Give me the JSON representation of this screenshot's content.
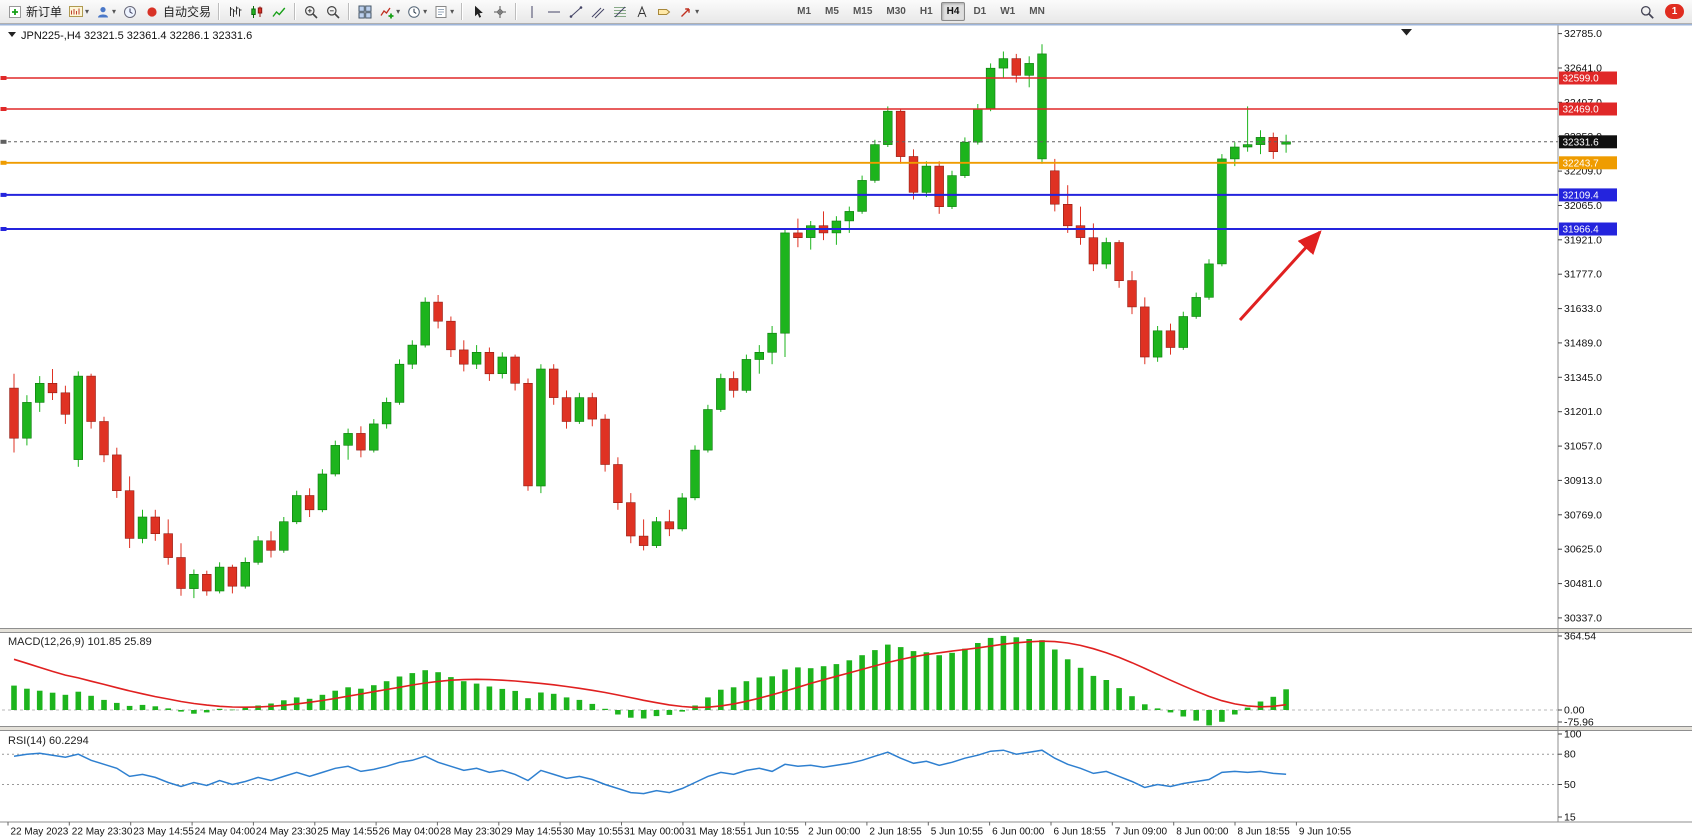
{
  "chart_header": {
    "symbol": "JPN225-,H4",
    "ohlc": "32321.5 32361.4 32286.1 32331.6"
  },
  "toolbar": {
    "items": [
      {
        "name": "new-order-button",
        "icon": "new-order-icon",
        "label": "新订单"
      },
      {
        "name": "new-chart-button",
        "icon": "new-chart-icon",
        "dropdown": true
      },
      {
        "name": "profiles-button",
        "icon": "profiles-icon",
        "dropdown": true
      },
      {
        "name": "market-watch-button",
        "icon": "market-watch-icon"
      },
      {
        "name": "autotrade-button",
        "icon": "autotrade-icon",
        "label": "自动交易"
      },
      {
        "sep": true
      },
      {
        "name": "bar-chart-button",
        "icon": "bar-chart-icon"
      },
      {
        "name": "candle-chart-button",
        "icon": "candle-chart-icon"
      },
      {
        "name": "line-chart-button",
        "icon": "line-chart-icon"
      },
      {
        "sep": true
      },
      {
        "name": "zoom-in-button",
        "icon": "zoom-in-icon"
      },
      {
        "name": "zoom-out-button",
        "icon": "zoom-out-icon"
      },
      {
        "sep": true
      },
      {
        "name": "tile-windows-button",
        "icon": "tile-windows-icon"
      },
      {
        "name": "indicators-button",
        "icon": "indicators-icon",
        "dropdown": true
      },
      {
        "name": "periods-button",
        "icon": "periods-icon",
        "dropdown": true
      },
      {
        "name": "templates-button",
        "icon": "templates-icon",
        "dropdown": true
      },
      {
        "sep": true
      },
      {
        "name": "cursor-button",
        "icon": "cursor-icon"
      },
      {
        "name": "crosshair-button",
        "icon": "crosshair-icon"
      },
      {
        "sep": true
      },
      {
        "name": "vline-button",
        "icon": "vline-icon"
      },
      {
        "name": "hline-button",
        "icon": "hline-icon"
      },
      {
        "name": "trendline-button",
        "icon": "trendline-icon"
      },
      {
        "name": "channel-button",
        "icon": "channel-icon"
      },
      {
        "name": "fibo-button",
        "icon": "fibo-icon"
      },
      {
        "name": "text-button",
        "icon": "text-icon"
      },
      {
        "name": "label-button",
        "icon": "label-icon"
      },
      {
        "name": "arrows-button",
        "icon": "arrows-icon",
        "dropdown": true
      }
    ],
    "timeframes": [
      "M1",
      "M5",
      "M15",
      "M30",
      "H1",
      "H4",
      "D1",
      "W1",
      "MN"
    ],
    "active_timeframe": "H4",
    "notification_count": "1"
  },
  "colors": {
    "up": "#1db41d",
    "down": "#df3223",
    "up_border": "#0c7a0c",
    "down_border": "#8f1d14",
    "macd_bar": "#1db41d",
    "macd_signal": "#e02020",
    "rsi_line": "#2f80d0",
    "arrow": "#e02020"
  },
  "hlines": [
    {
      "price": 32599.0,
      "label": "32599.0",
      "color": "#e02828",
      "width": 1.4
    },
    {
      "price": 32469.0,
      "label": "32469.0",
      "color": "#e02828",
      "width": 1.4
    },
    {
      "price": 32331.6,
      "label": "32331.6",
      "color": "#606060",
      "tag": "#101010",
      "width": 1,
      "dash": "3,3"
    },
    {
      "price": 32243.7,
      "label": "32243.7",
      "color": "#ef9c00",
      "width": 1.8
    },
    {
      "price": 32109.4,
      "label": "32109.4",
      "color": "#2424dd",
      "width": 2
    },
    {
      "price": 31966.4,
      "label": "31966.4",
      "color": "#2424dd",
      "width": 2
    }
  ],
  "price_axis_labels": [
    "32785.0",
    "32641.0",
    "32497.0",
    "32353.0",
    "32209.0",
    "32065.0",
    "31921.0",
    "31777.0",
    "31633.0",
    "31489.0",
    "31345.0",
    "31201.0",
    "31057.0",
    "30913.0",
    "30769.0",
    "30625.0",
    "30481.0",
    "30337.0"
  ],
  "time_axis": [
    "22 May 2023",
    "22 May 23:30",
    "23 May 14:55",
    "24 May 04:00",
    "24 May 23:30",
    "25 May 14:55",
    "26 May 04:00",
    "28 May 23:30",
    "29 May 14:55",
    "30 May 10:55",
    "31 May 00:00",
    "31 May 18:55",
    "1 Jun 10:55",
    "2 Jun 00:00",
    "2 Jun 18:55",
    "5 Jun 10:55",
    "6 Jun 00:00",
    "6 Jun 18:55",
    "7 Jun 09:00",
    "8 Jun 00:00",
    "8 Jun 18:55",
    "9 Jun 10:55"
  ],
  "indicator_labels": {
    "macd": "MACD(12,26,9) 101.85 25.89",
    "rsi": "RSI(14) 60.2294"
  },
  "macd_scale": [
    "364.54",
    "0.00",
    "-75.96"
  ],
  "rsi_scale": [
    "100",
    "80",
    "50",
    "15"
  ],
  "annotation": {
    "type": "arrow",
    "color": "#e02020",
    "from": [
      1240,
      320
    ],
    "to": [
      1320,
      232
    ]
  },
  "chart_data": [
    {
      "type": "candlestick",
      "symbol": "JPN225-",
      "timeframe": "H4",
      "current_ohlc": [
        32321.5,
        32361.4,
        32286.1,
        32331.6
      ],
      "ylim": [
        30320,
        32800
      ],
      "ohlc": [
        [
          31300,
          31360,
          31030,
          31090
        ],
        [
          31090,
          31270,
          31060,
          31240
        ],
        [
          31240,
          31350,
          31200,
          31320
        ],
        [
          31320,
          31380,
          31250,
          31280
        ],
        [
          31280,
          31310,
          31150,
          31190
        ],
        [
          31000,
          31370,
          30970,
          31350
        ],
        [
          31350,
          31360,
          31130,
          31160
        ],
        [
          31160,
          31180,
          30990,
          31020
        ],
        [
          31020,
          31050,
          30840,
          30870
        ],
        [
          30870,
          30930,
          30630,
          30670
        ],
        [
          30670,
          30790,
          30650,
          30760
        ],
        [
          30760,
          30790,
          30660,
          30690
        ],
        [
          30690,
          30750,
          30560,
          30590
        ],
        [
          30590,
          30650,
          30430,
          30460
        ],
        [
          30460,
          30540,
          30420,
          30520
        ],
        [
          30520,
          30535,
          30430,
          30450
        ],
        [
          30450,
          30570,
          30440,
          30550
        ],
        [
          30550,
          30560,
          30440,
          30470
        ],
        [
          30470,
          30590,
          30460,
          30570
        ],
        [
          30570,
          30680,
          30560,
          30660
        ],
        [
          30660,
          30700,
          30590,
          30620
        ],
        [
          30620,
          30760,
          30610,
          30740
        ],
        [
          30740,
          30870,
          30730,
          30850
        ],
        [
          30850,
          30880,
          30760,
          30790
        ],
        [
          30790,
          30960,
          30780,
          30940
        ],
        [
          30940,
          31080,
          30930,
          31060
        ],
        [
          31060,
          31130,
          31000,
          31110
        ],
        [
          31110,
          31140,
          31010,
          31040
        ],
        [
          31040,
          31170,
          31030,
          31150
        ],
        [
          31150,
          31260,
          31130,
          31240
        ],
        [
          31240,
          31420,
          31230,
          31400
        ],
        [
          31400,
          31500,
          31380,
          31480
        ],
        [
          31480,
          31680,
          31470,
          31660
        ],
        [
          31660,
          31690,
          31550,
          31580
        ],
        [
          31580,
          31600,
          31430,
          31460
        ],
        [
          31460,
          31500,
          31370,
          31400
        ],
        [
          31400,
          31480,
          31380,
          31450
        ],
        [
          31450,
          31470,
          31330,
          31360
        ],
        [
          31360,
          31450,
          31340,
          31430
        ],
        [
          31430,
          31440,
          31290,
          31320
        ],
        [
          31320,
          31340,
          30870,
          30890
        ],
        [
          30890,
          31400,
          30860,
          31380
        ],
        [
          31380,
          31400,
          31230,
          31260
        ],
        [
          31260,
          31290,
          31130,
          31160
        ],
        [
          31160,
          31280,
          31150,
          31260
        ],
        [
          31260,
          31280,
          31140,
          31170
        ],
        [
          31170,
          31190,
          30950,
          30980
        ],
        [
          30980,
          31010,
          30790,
          30820
        ],
        [
          30820,
          30860,
          30650,
          30680
        ],
        [
          30680,
          30750,
          30620,
          30640
        ],
        [
          30640,
          30760,
          30630,
          30740
        ],
        [
          30740,
          30790,
          30680,
          30710
        ],
        [
          30710,
          30860,
          30700,
          30840
        ],
        [
          30840,
          31060,
          30830,
          31040
        ],
        [
          31040,
          31230,
          31030,
          31210
        ],
        [
          31210,
          31360,
          31200,
          31340
        ],
        [
          31340,
          31370,
          31260,
          31290
        ],
        [
          31290,
          31440,
          31280,
          31420
        ],
        [
          31420,
          31480,
          31360,
          31450
        ],
        [
          31450,
          31560,
          31400,
          31530
        ],
        [
          31530,
          31970,
          31430,
          31950
        ],
        [
          31950,
          32010,
          31890,
          31930
        ],
        [
          31930,
          32000,
          31880,
          31980
        ],
        [
          31980,
          32040,
          31920,
          31950
        ],
        [
          31950,
          32020,
          31900,
          32000
        ],
        [
          32000,
          32060,
          31950,
          32040
        ],
        [
          32040,
          32190,
          32030,
          32170
        ],
        [
          32170,
          32340,
          32160,
          32320
        ],
        [
          32320,
          32480,
          32310,
          32460
        ],
        [
          32460,
          32470,
          32240,
          32270
        ],
        [
          32270,
          32300,
          32090,
          32120
        ],
        [
          32120,
          32250,
          32100,
          32230
        ],
        [
          32230,
          32250,
          32030,
          32060
        ],
        [
          32060,
          32210,
          32050,
          32190
        ],
        [
          32190,
          32350,
          32180,
          32330
        ],
        [
          32330,
          32490,
          32320,
          32470
        ],
        [
          32470,
          32660,
          32460,
          32640
        ],
        [
          32640,
          32710,
          32600,
          32680
        ],
        [
          32680,
          32700,
          32580,
          32610
        ],
        [
          32610,
          32690,
          32560,
          32660
        ],
        [
          32260,
          32740,
          32240,
          32700
        ],
        [
          32210,
          32260,
          32040,
          32070
        ],
        [
          32070,
          32150,
          31950,
          31980
        ],
        [
          31980,
          32060,
          31900,
          31930
        ],
        [
          31930,
          31990,
          31790,
          31820
        ],
        [
          31820,
          31930,
          31800,
          31910
        ],
        [
          31910,
          31920,
          31720,
          31750
        ],
        [
          31750,
          31790,
          31610,
          31640
        ],
        [
          31640,
          31680,
          31400,
          31430
        ],
        [
          31430,
          31560,
          31410,
          31540
        ],
        [
          31540,
          31570,
          31440,
          31470
        ],
        [
          31470,
          31620,
          31460,
          31600
        ],
        [
          31600,
          31700,
          31590,
          31680
        ],
        [
          31680,
          31840,
          31670,
          31820
        ],
        [
          31820,
          32280,
          31810,
          32260
        ],
        [
          32260,
          32330,
          32230,
          32310
        ],
        [
          32310,
          32480,
          32290,
          32320
        ],
        [
          32320,
          32380,
          32280,
          32350
        ],
        [
          32350,
          32370,
          32260,
          32290
        ],
        [
          32321.5,
          32361.4,
          32286.1,
          32331.6
        ]
      ]
    },
    {
      "type": "bar",
      "name": "MACD(12,26,9)",
      "main_value": 101.85,
      "signal_value": 25.89,
      "ylim": [
        -75.96,
        364.54
      ],
      "levels": [
        0
      ],
      "histogram": [
        120,
        105,
        95,
        85,
        75,
        90,
        70,
        50,
        35,
        20,
        25,
        18,
        8,
        -8,
        -18,
        -12,
        6,
        2,
        12,
        22,
        32,
        48,
        62,
        55,
        75,
        95,
        112,
        105,
        122,
        142,
        165,
        182,
        196,
        186,
        162,
        142,
        130,
        116,
        104,
        94,
        58,
        86,
        80,
        62,
        50,
        30,
        6,
        -22,
        -38,
        -42,
        -30,
        -24,
        -8,
        22,
        62,
        100,
        112,
        142,
        160,
        166,
        200,
        210,
        206,
        216,
        226,
        245,
        270,
        295,
        322,
        310,
        290,
        284,
        270,
        282,
        302,
        330,
        355,
        365,
        358,
        350,
        344,
        298,
        250,
        208,
        168,
        148,
        108,
        68,
        28,
        8,
        -12,
        -32,
        -52,
        -75.96,
        -58,
        -22,
        12,
        42,
        65,
        101.85
      ],
      "signal": [
        250,
        230,
        210,
        190,
        172,
        158,
        142,
        126,
        110,
        94,
        80,
        66,
        54,
        42,
        32,
        24,
        18,
        15,
        14,
        15,
        18,
        23,
        30,
        38,
        47,
        57,
        68,
        79,
        90,
        101,
        112,
        123,
        133,
        141,
        147,
        150,
        151,
        150,
        147,
        143,
        137,
        131,
        124,
        116,
        107,
        97,
        86,
        74,
        61,
        48,
        36,
        25,
        17,
        13,
        14,
        20,
        30,
        43,
        58,
        75,
        93,
        112,
        131,
        149,
        166,
        183,
        200,
        217,
        234,
        249,
        262,
        273,
        282,
        290,
        298,
        306,
        315,
        324,
        331,
        336,
        339,
        337,
        330,
        318,
        302,
        282,
        259,
        233,
        205,
        176,
        147,
        119,
        92,
        67,
        46,
        30,
        20,
        16,
        18,
        25.89
      ]
    },
    {
      "type": "line",
      "name": "RSI(14)",
      "value": 60.2294,
      "ylim": [
        0,
        100
      ],
      "levels": [
        80,
        50
      ],
      "values": [
        78,
        80,
        81,
        79,
        77,
        80,
        74,
        70,
        66,
        58,
        60,
        57,
        52,
        48,
        52,
        49,
        54,
        50,
        53,
        57,
        54,
        58,
        62,
        58,
        62,
        66,
        68,
        63,
        65,
        68,
        72,
        74,
        78,
        72,
        68,
        64,
        66,
        62,
        64,
        60,
        54,
        64,
        60,
        56,
        58,
        55,
        50,
        46,
        42,
        41,
        44,
        42,
        46,
        52,
        58,
        62,
        60,
        64,
        66,
        63,
        70,
        68,
        69,
        67,
        69,
        71,
        74,
        78,
        82,
        76,
        71,
        73,
        69,
        72,
        76,
        79,
        83,
        84,
        80,
        82,
        84,
        76,
        70,
        66,
        61,
        63,
        58,
        53,
        47,
        50,
        48,
        51,
        53,
        55,
        62,
        63,
        62,
        63,
        61,
        60.2294
      ]
    }
  ]
}
